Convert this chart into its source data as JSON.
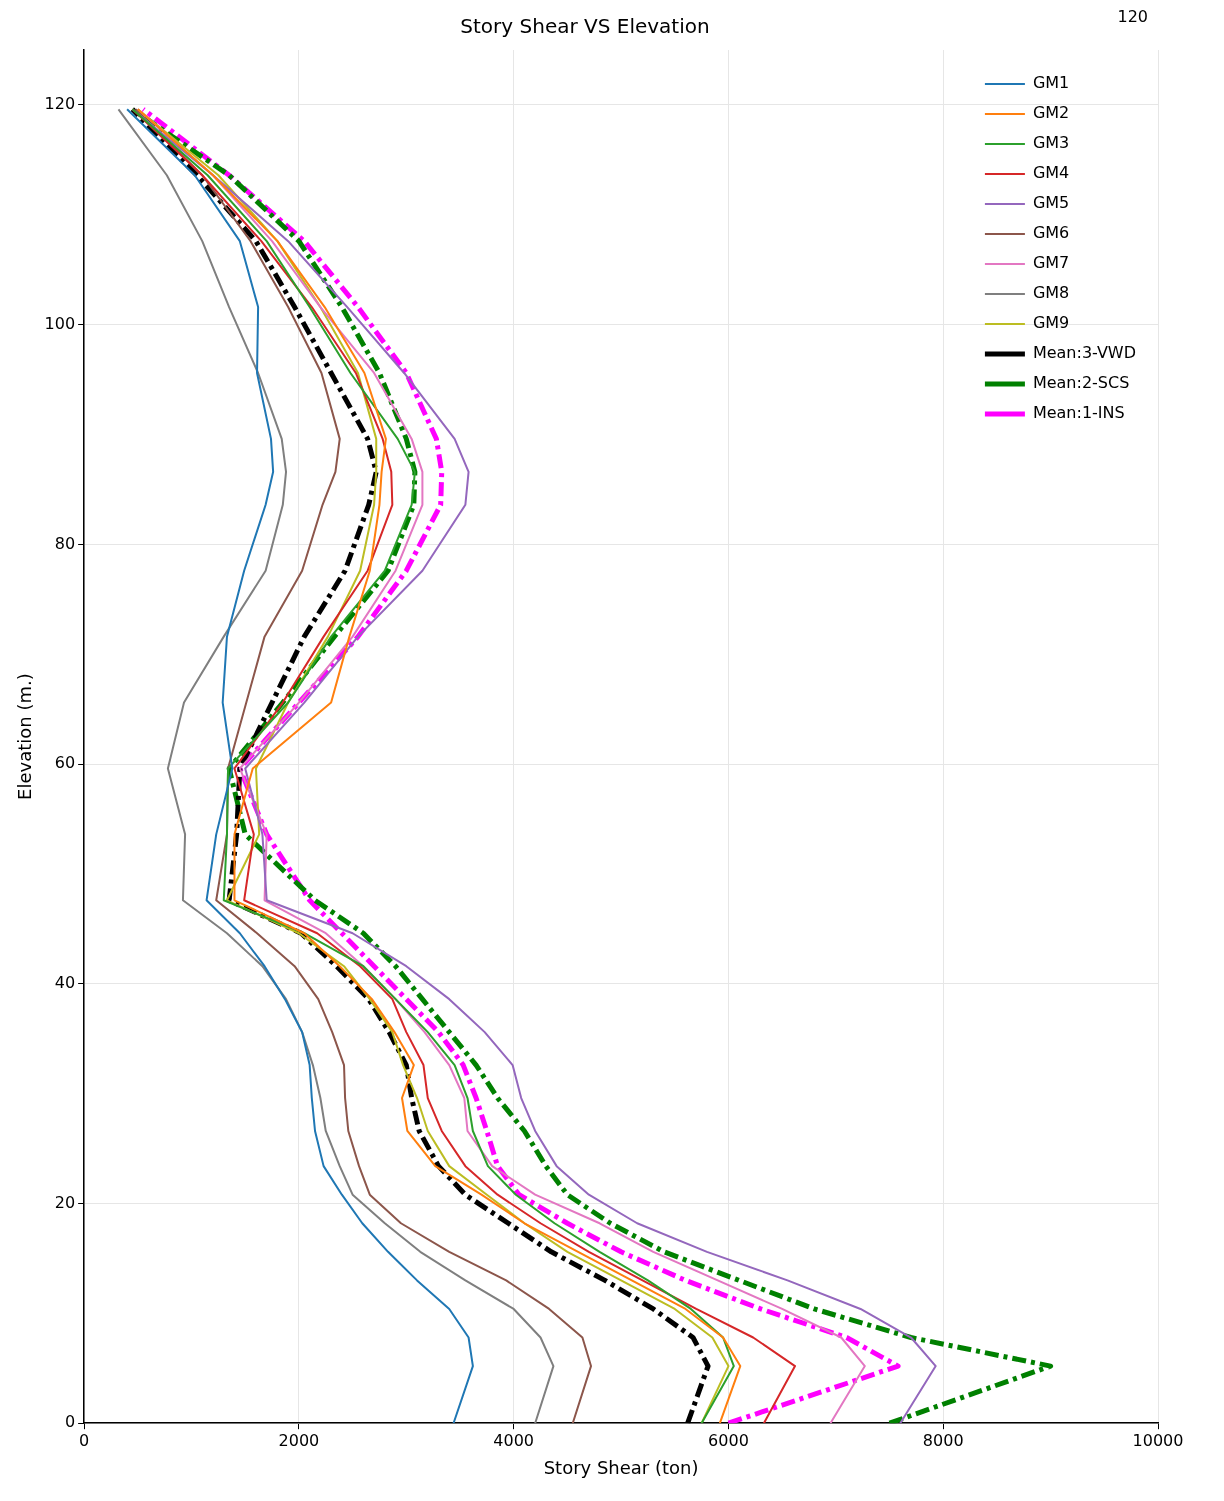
{
  "chart_data": {
    "type": "line",
    "title": "Story Shear VS Elevation",
    "xlabel": "Story Shear (ton)",
    "ylabel": "Elevation (m.)",
    "annotations": [
      "120"
    ],
    "xlim": [
      0,
      10000
    ],
    "xticks": [
      0,
      2000,
      4000,
      6000,
      8000,
      10000
    ],
    "ylim": [
      0,
      125
    ],
    "yticks": [
      0,
      20,
      40,
      60,
      80,
      100,
      120
    ],
    "grid": true,
    "legend": "top right",
    "marker": "none",
    "series": [
      {
        "name": "GM1",
        "color": "#1f77b4",
        "line_style": "solid",
        "x": [
          3440,
          3620,
          3580,
          3400,
          3100,
          2830,
          2590,
          2400,
          2230,
          2150,
          2120,
          2100,
          2030,
          1870,
          1680,
          1450,
          1140,
          1230,
          1380,
          1290,
          1330,
          1490,
          1690,
          1760,
          1740,
          1610,
          1620,
          1450,
          1030,
          400
        ],
        "values": [
          0,
          5.2,
          7.8,
          10.4,
          13,
          15.6,
          18.2,
          20.8,
          23.4,
          26.6,
          29.6,
          32.6,
          35.6,
          38.6,
          41.6,
          44.6,
          47.6,
          53.6,
          59.6,
          65.6,
          71.6,
          77.6,
          83.6,
          86.6,
          89.6,
          95.6,
          101.6,
          107.6,
          113.6,
          119.6
        ]
      },
      {
        "name": "GM2",
        "color": "#ff7f0e",
        "line_style": "solid",
        "x": [
          5920,
          6110,
          5950,
          5600,
          5100,
          4600,
          4100,
          3700,
          3270,
          3010,
          2960,
          3070,
          2890,
          2680,
          2380,
          2050,
          1400,
          1400,
          1570,
          2300,
          2470,
          2660,
          2750,
          2770,
          2810,
          2610,
          2240,
          1800,
          1200,
          500
        ],
        "values": [
          0,
          5.2,
          7.8,
          10.4,
          13,
          15.6,
          18.2,
          20.8,
          23.4,
          26.6,
          29.6,
          32.6,
          35.6,
          38.6,
          41.6,
          44.6,
          47.6,
          53.6,
          59.6,
          65.6,
          71.6,
          77.6,
          83.6,
          86.6,
          89.6,
          95.6,
          101.6,
          107.6,
          113.6,
          119.6
        ]
      },
      {
        "name": "GM3",
        "color": "#2ca02c",
        "line_style": "solid",
        "x": [
          5750,
          6050,
          5950,
          5650,
          5250,
          4800,
          4380,
          4020,
          3760,
          3620,
          3570,
          3450,
          3200,
          2900,
          2600,
          2050,
          1300,
          1330,
          1340,
          1900,
          2300,
          2800,
          3050,
          3080,
          2920,
          2480,
          2100,
          1700,
          1150,
          450
        ],
        "values": [
          0,
          5.2,
          7.8,
          10.4,
          13,
          15.6,
          18.2,
          20.8,
          23.4,
          26.6,
          29.6,
          32.6,
          35.6,
          38.6,
          41.6,
          44.6,
          47.6,
          53.6,
          59.6,
          65.6,
          71.6,
          77.6,
          83.6,
          86.6,
          89.6,
          95.6,
          101.6,
          107.6,
          113.6,
          119.6
        ]
      },
      {
        "name": "GM4",
        "color": "#d62728",
        "line_style": "solid",
        "x": [
          6330,
          6620,
          6230,
          5700,
          5200,
          4700,
          4250,
          3850,
          3550,
          3330,
          3200,
          3160,
          3000,
          2870,
          2570,
          2170,
          1490,
          1580,
          1400,
          1850,
          2230,
          2640,
          2870,
          2860,
          2780,
          2530,
          2120,
          1650,
          1100,
          450
        ],
        "values": [
          0,
          5.2,
          7.8,
          10.4,
          13,
          15.6,
          18.2,
          20.8,
          23.4,
          26.6,
          29.6,
          32.6,
          35.6,
          38.6,
          41.6,
          44.6,
          47.6,
          53.6,
          59.6,
          65.6,
          71.6,
          77.6,
          83.6,
          86.6,
          89.6,
          95.6,
          101.6,
          107.6,
          113.6,
          119.6
        ]
      },
      {
        "name": "GM5",
        "color": "#9467bd",
        "line_style": "solid",
        "x": [
          7600,
          7930,
          7700,
          7230,
          6550,
          5800,
          5150,
          4700,
          4400,
          4200,
          4070,
          3990,
          3730,
          3400,
          3000,
          2500,
          1700,
          1660,
          1500,
          2050,
          2550,
          3150,
          3550,
          3580,
          3450,
          2980,
          2450,
          1900,
          1200,
          450
        ],
        "values": [
          0,
          5.2,
          7.8,
          10.4,
          13,
          15.6,
          18.2,
          20.8,
          23.4,
          26.6,
          29.6,
          32.6,
          35.6,
          38.6,
          41.6,
          44.6,
          47.6,
          53.6,
          59.6,
          65.6,
          71.6,
          77.6,
          83.6,
          86.6,
          89.6,
          95.6,
          101.6,
          107.6,
          113.6,
          119.6
        ]
      },
      {
        "name": "GM6",
        "color": "#8c564b",
        "line_style": "solid",
        "x": [
          4550,
          4720,
          4640,
          4330,
          3930,
          3400,
          2950,
          2660,
          2560,
          2460,
          2430,
          2420,
          2310,
          2180,
          1960,
          1610,
          1230,
          1330,
          1340,
          1510,
          1680,
          2030,
          2220,
          2340,
          2380,
          2210,
          1900,
          1550,
          1100,
          480
        ],
        "values": [
          0,
          5.2,
          7.8,
          10.4,
          13,
          15.6,
          18.2,
          20.8,
          23.4,
          26.6,
          29.6,
          32.6,
          35.6,
          38.6,
          41.6,
          44.6,
          47.6,
          53.6,
          59.6,
          65.6,
          71.6,
          77.6,
          83.6,
          86.6,
          89.6,
          95.6,
          101.6,
          107.6,
          113.6,
          119.6
        ]
      },
      {
        "name": "GM7",
        "color": "#e377c2",
        "line_style": "solid",
        "x": [
          6950,
          7270,
          7050,
          6500,
          5900,
          5300,
          4800,
          4200,
          3800,
          3570,
          3540,
          3400,
          3170,
          2900,
          2600,
          2250,
          1680,
          1700,
          1450,
          2000,
          2500,
          2900,
          3150,
          3150,
          3050,
          2700,
          2200,
          1750,
          1200,
          500
        ],
        "values": [
          0,
          5.2,
          7.8,
          10.4,
          13,
          15.6,
          18.2,
          20.8,
          23.4,
          26.6,
          29.6,
          32.6,
          35.6,
          38.6,
          41.6,
          44.6,
          47.6,
          53.6,
          59.6,
          65.6,
          71.6,
          77.6,
          83.6,
          86.6,
          89.6,
          95.6,
          101.6,
          107.6,
          113.6,
          119.6
        ]
      },
      {
        "name": "GM8",
        "color": "#7f7f7f",
        "line_style": "solid",
        "x": [
          4200,
          4370,
          4250,
          4000,
          3550,
          3130,
          2800,
          2500,
          2380,
          2250,
          2200,
          2130,
          2030,
          1880,
          1660,
          1330,
          920,
          940,
          780,
          930,
          1300,
          1690,
          1850,
          1880,
          1840,
          1620,
          1350,
          1100,
          770,
          320
        ],
        "values": [
          0,
          5.2,
          7.8,
          10.4,
          13,
          15.6,
          18.2,
          20.8,
          23.4,
          26.6,
          29.6,
          32.6,
          35.6,
          38.6,
          41.6,
          44.6,
          47.6,
          53.6,
          59.6,
          65.6,
          71.6,
          77.6,
          83.6,
          86.6,
          89.6,
          95.6,
          101.6,
          107.6,
          113.6,
          119.6
        ]
      },
      {
        "name": "GM9",
        "color": "#bcbd22",
        "line_style": "solid",
        "x": [
          5750,
          6000,
          5850,
          5500,
          5000,
          4500,
          4100,
          3750,
          3400,
          3200,
          3100,
          2970,
          2870,
          2660,
          2420,
          2000,
          1330,
          1630,
          1600,
          1900,
          2270,
          2570,
          2700,
          2720,
          2720,
          2550,
          2200,
          1800,
          1250,
          500
        ],
        "values": [
          0,
          5.2,
          7.8,
          10.4,
          13,
          15.6,
          18.2,
          20.8,
          23.4,
          26.6,
          29.6,
          32.6,
          35.6,
          38.6,
          41.6,
          44.6,
          47.6,
          53.6,
          59.6,
          65.6,
          71.6,
          77.6,
          83.6,
          86.6,
          89.6,
          95.6,
          101.6,
          107.6,
          113.6,
          119.6
        ]
      },
      {
        "name": "Mean:3-VWD",
        "color": "#000000",
        "line_style": "dashed",
        "x": [
          5620,
          5810,
          5670,
          5300,
          4850,
          4350,
          3950,
          3550,
          3300,
          3120,
          3050,
          3000,
          2840,
          2650,
          2350,
          2020,
          1350,
          1420,
          1450,
          1750,
          2050,
          2430,
          2650,
          2720,
          2640,
          2300,
          1960,
          1600,
          1050,
          450
        ],
        "values": [
          0,
          5.2,
          7.8,
          10.4,
          13,
          15.6,
          18.2,
          20.8,
          23.4,
          26.6,
          29.6,
          32.6,
          35.6,
          38.6,
          41.6,
          44.6,
          47.6,
          53.6,
          59.6,
          65.6,
          71.6,
          77.6,
          83.6,
          86.6,
          89.6,
          95.6,
          101.6,
          107.6,
          113.6,
          119.6
        ]
      },
      {
        "name": "Mean:2-SCS",
        "color": "#008000",
        "line_style": "dashed",
        "x": [
          7500,
          9000,
          7700,
          6800,
          6100,
          5400,
          4900,
          4500,
          4300,
          4100,
          3850,
          3650,
          3400,
          3150,
          2900,
          2600,
          2150,
          1500,
          1350,
          1850,
          2330,
          2830,
          3070,
          3080,
          3000,
          2750,
          2400,
          2000,
          1350,
          450
        ],
        "values": [
          0,
          5.2,
          7.8,
          10.4,
          13,
          15.6,
          18.2,
          20.8,
          23.4,
          26.6,
          29.6,
          32.6,
          35.6,
          38.6,
          41.6,
          44.6,
          47.6,
          53.6,
          59.6,
          65.6,
          71.6,
          77.6,
          83.6,
          86.6,
          89.6,
          95.6,
          101.6,
          107.6,
          113.6,
          119.6
        ]
      },
      {
        "name": "Mean:1-INS",
        "color": "#ff00ff",
        "line_style": "dashed",
        "x": [
          6000,
          7580,
          7100,
          6300,
          5600,
          5000,
          4500,
          4050,
          3850,
          3750,
          3650,
          3530,
          3300,
          3000,
          2700,
          2400,
          2100,
          1700,
          1450,
          2000,
          2550,
          3000,
          3320,
          3330,
          3280,
          3000,
          2550,
          2050,
          1350,
          550
        ],
        "values": [
          0,
          5.2,
          7.8,
          10.4,
          13,
          15.6,
          18.2,
          20.8,
          23.4,
          26.6,
          29.6,
          32.6,
          35.6,
          38.6,
          41.6,
          44.6,
          47.6,
          53.6,
          59.6,
          65.6,
          71.6,
          77.6,
          83.6,
          86.6,
          89.6,
          95.6,
          101.6,
          107.6,
          113.6,
          119.6
        ]
      }
    ]
  }
}
